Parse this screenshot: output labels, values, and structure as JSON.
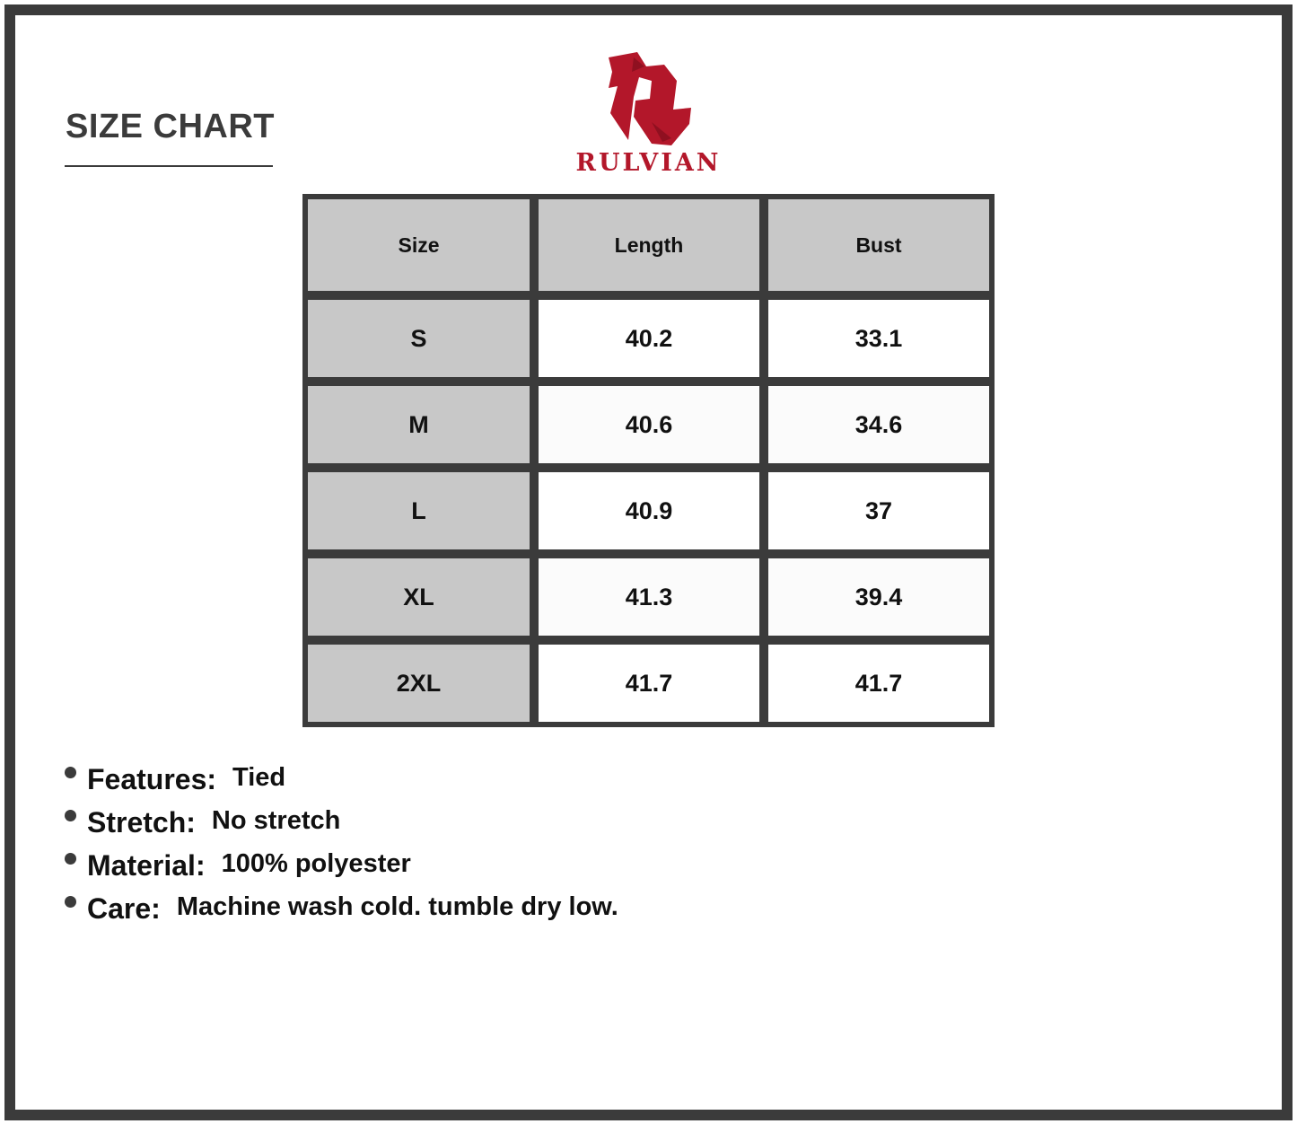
{
  "title": "SIZE CHART",
  "brand": {
    "name": "RULVIAN",
    "color": "#b3172a"
  },
  "table": {
    "headers": [
      "Size",
      "Length",
      "Bust"
    ],
    "rows": [
      [
        "S",
        "40.2",
        "33.1"
      ],
      [
        "M",
        "40.6",
        "34.6"
      ],
      [
        "L",
        "40.9",
        "37"
      ],
      [
        "XL",
        "41.3",
        "39.4"
      ],
      [
        "2XL",
        "41.7",
        "41.7"
      ]
    ]
  },
  "specs": [
    {
      "label": "Features:",
      "value": "Tied"
    },
    {
      "label": "Stretch:",
      "value": "No stretch"
    },
    {
      "label": "Material:",
      "value": "100% polyester"
    },
    {
      "label": "Care:",
      "value": "Machine wash cold. tumble dry low."
    }
  ]
}
